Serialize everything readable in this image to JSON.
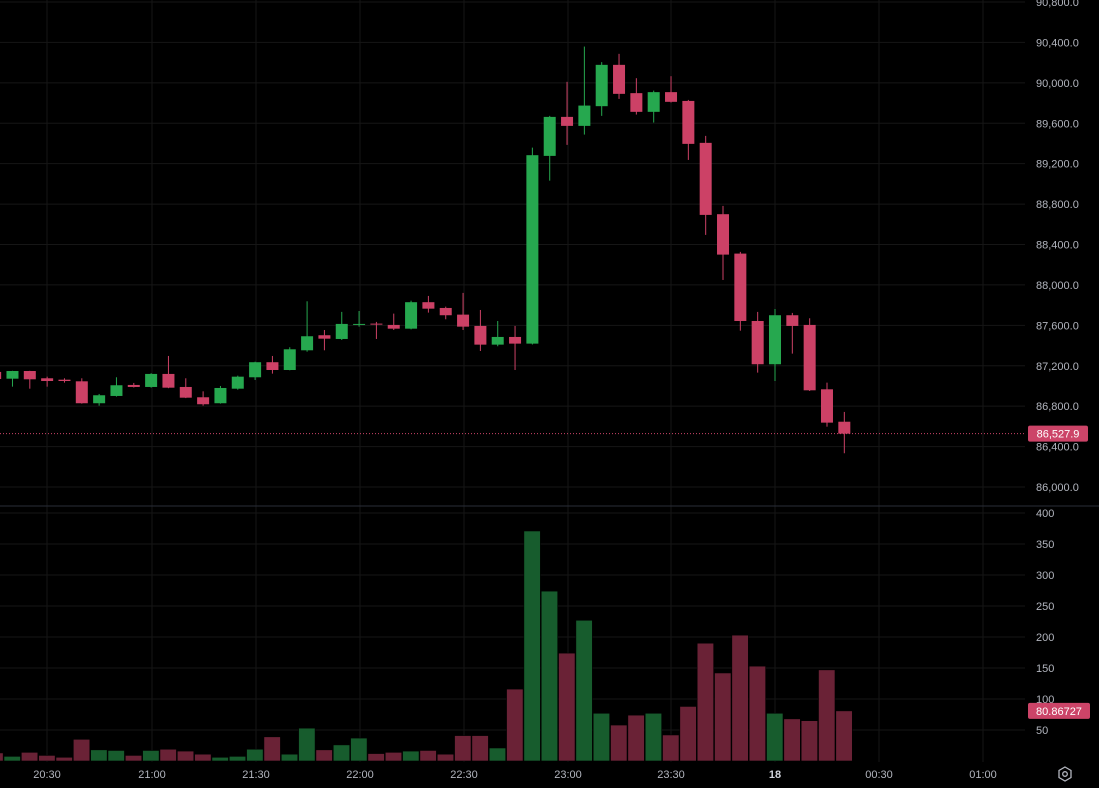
{
  "chart_data": [
    {
      "type": "candlestick",
      "pane": "price",
      "interval_minutes": 5,
      "columns": [
        "time",
        "open",
        "high",
        "low",
        "close"
      ],
      "candles": [
        [
          "20:15",
          87139,
          87150,
          87060,
          87069
        ],
        [
          "20:20",
          87072,
          87150,
          86993,
          87148
        ],
        [
          "20:25",
          87148,
          87150,
          86973,
          87066
        ],
        [
          "20:30",
          87076,
          87092,
          86993,
          87049
        ],
        [
          "20:35",
          87062,
          87076,
          87033,
          87049
        ],
        [
          "20:40",
          87046,
          87076,
          86825,
          86829
        ],
        [
          "20:45",
          86829,
          86921,
          86805,
          86908
        ],
        [
          "20:50",
          86901,
          87086,
          86895,
          87007
        ],
        [
          "20:55",
          87010,
          87030,
          86985,
          86990
        ],
        [
          "21:00",
          86990,
          87126,
          86983,
          87119
        ],
        [
          "21:05",
          87119,
          87297,
          86978,
          86983
        ],
        [
          "21:10",
          86990,
          87076,
          86880,
          86884
        ],
        [
          "21:15",
          86888,
          86947,
          86805,
          86819
        ],
        [
          "21:20",
          86829,
          87000,
          86825,
          86980
        ],
        [
          "21:25",
          86973,
          87102,
          86963,
          87092
        ],
        [
          "21:30",
          87086,
          87240,
          87059,
          87235
        ],
        [
          "21:35",
          87235,
          87297,
          87122,
          87158
        ],
        [
          "21:40",
          87158,
          87383,
          87155,
          87363
        ],
        [
          "21:45",
          87353,
          87838,
          87339,
          87492
        ],
        [
          "21:50",
          87502,
          87554,
          87353,
          87468
        ],
        [
          "21:55",
          87465,
          87733,
          87455,
          87614
        ],
        [
          "22:00",
          87607,
          87742,
          87587,
          87614
        ],
        [
          "22:05",
          87617,
          87634,
          87465,
          87607
        ],
        [
          "22:10",
          87604,
          87716,
          87554,
          87567
        ],
        [
          "22:15",
          87567,
          87844,
          87560,
          87829
        ],
        [
          "22:20",
          87829,
          87891,
          87726,
          87765
        ],
        [
          "22:25",
          87772,
          87785,
          87660,
          87700
        ],
        [
          "22:30",
          87706,
          87921,
          87554,
          87587
        ],
        [
          "22:35",
          87594,
          87752,
          87346,
          87409
        ],
        [
          "22:40",
          87409,
          87643,
          87393,
          87485
        ],
        [
          "22:45",
          87485,
          87594,
          87158,
          87419
        ],
        [
          "22:50",
          87419,
          89359,
          87410,
          89284
        ],
        [
          "22:55",
          89277,
          89673,
          89032,
          89663
        ],
        [
          "23:00",
          89663,
          90010,
          89386,
          89574
        ],
        [
          "23:05",
          89574,
          90359,
          89488,
          89775
        ],
        [
          "23:10",
          89769,
          90205,
          89673,
          90178
        ],
        [
          "23:15",
          90178,
          90287,
          89841,
          89891
        ],
        [
          "23:20",
          89898,
          90046,
          89686,
          89713
        ],
        [
          "23:25",
          89713,
          89923,
          89607,
          89908
        ],
        [
          "23:30",
          89908,
          90066,
          89805,
          89812
        ],
        [
          "23:35",
          89821,
          89831,
          89237,
          89396
        ],
        [
          "23:40",
          89406,
          89475,
          88495,
          88693
        ],
        [
          "23:45",
          88700,
          88782,
          88049,
          88300
        ],
        [
          "23:50",
          88310,
          88327,
          87547,
          87643
        ],
        [
          "23:55",
          87643,
          87733,
          87132,
          87215
        ],
        [
          "00:00",
          87215,
          87762,
          87049,
          87700
        ],
        [
          "00:05",
          87700,
          87723,
          87320,
          87594
        ],
        [
          "00:10",
          87604,
          87670,
          86950,
          86957
        ],
        [
          "00:15",
          86967,
          87033,
          86597,
          86637
        ],
        [
          "00:20",
          86646,
          86743,
          86334,
          86527.9
        ]
      ],
      "ylim": [
        86000,
        90800
      ],
      "y_ticks": [
        "90,800.0",
        "90,400.0",
        "90,000.0",
        "89,600.0",
        "89,200.0",
        "88,800.0",
        "88,400.0",
        "88,000.0",
        "87,600.0",
        "87,200.0",
        "86,800.0",
        "86,400.0",
        "86,000.0"
      ],
      "last_price_label": "86,527.9",
      "grid": true
    },
    {
      "type": "bar",
      "pane": "volume",
      "values": [
        13,
        7.5,
        14,
        9,
        6,
        35,
        18,
        17,
        9,
        17,
        19,
        16,
        11,
        6,
        7.5,
        19,
        39,
        11,
        53,
        18,
        26,
        37,
        12,
        14,
        16,
        17,
        11,
        41,
        41,
        21,
        116,
        371,
        274,
        174,
        227,
        77,
        58,
        74,
        77,
        42,
        88,
        190,
        142,
        203,
        153,
        77,
        68,
        65,
        147,
        80.86727
      ],
      "ylim": [
        0,
        400
      ],
      "y_ticks": [
        "400",
        "350",
        "300",
        "250",
        "200",
        "150",
        "100",
        "50"
      ],
      "last_value_label": "80.86727",
      "grid": true
    }
  ],
  "x_axis": {
    "tick_labels": [
      "20:30",
      "21:00",
      "21:30",
      "22:00",
      "22:30",
      "23:00",
      "23:30",
      "18",
      "00:30",
      "01:00"
    ],
    "bold_label": "18"
  },
  "colors": {
    "up": "#26a84f",
    "down": "#cc4166",
    "volume_up": "#175c2d",
    "volume_down": "#6a2236",
    "last_price_tag": "#cc4468",
    "grid": "#161616",
    "background": "#000000"
  },
  "icons": {
    "settings": "gear-icon"
  }
}
